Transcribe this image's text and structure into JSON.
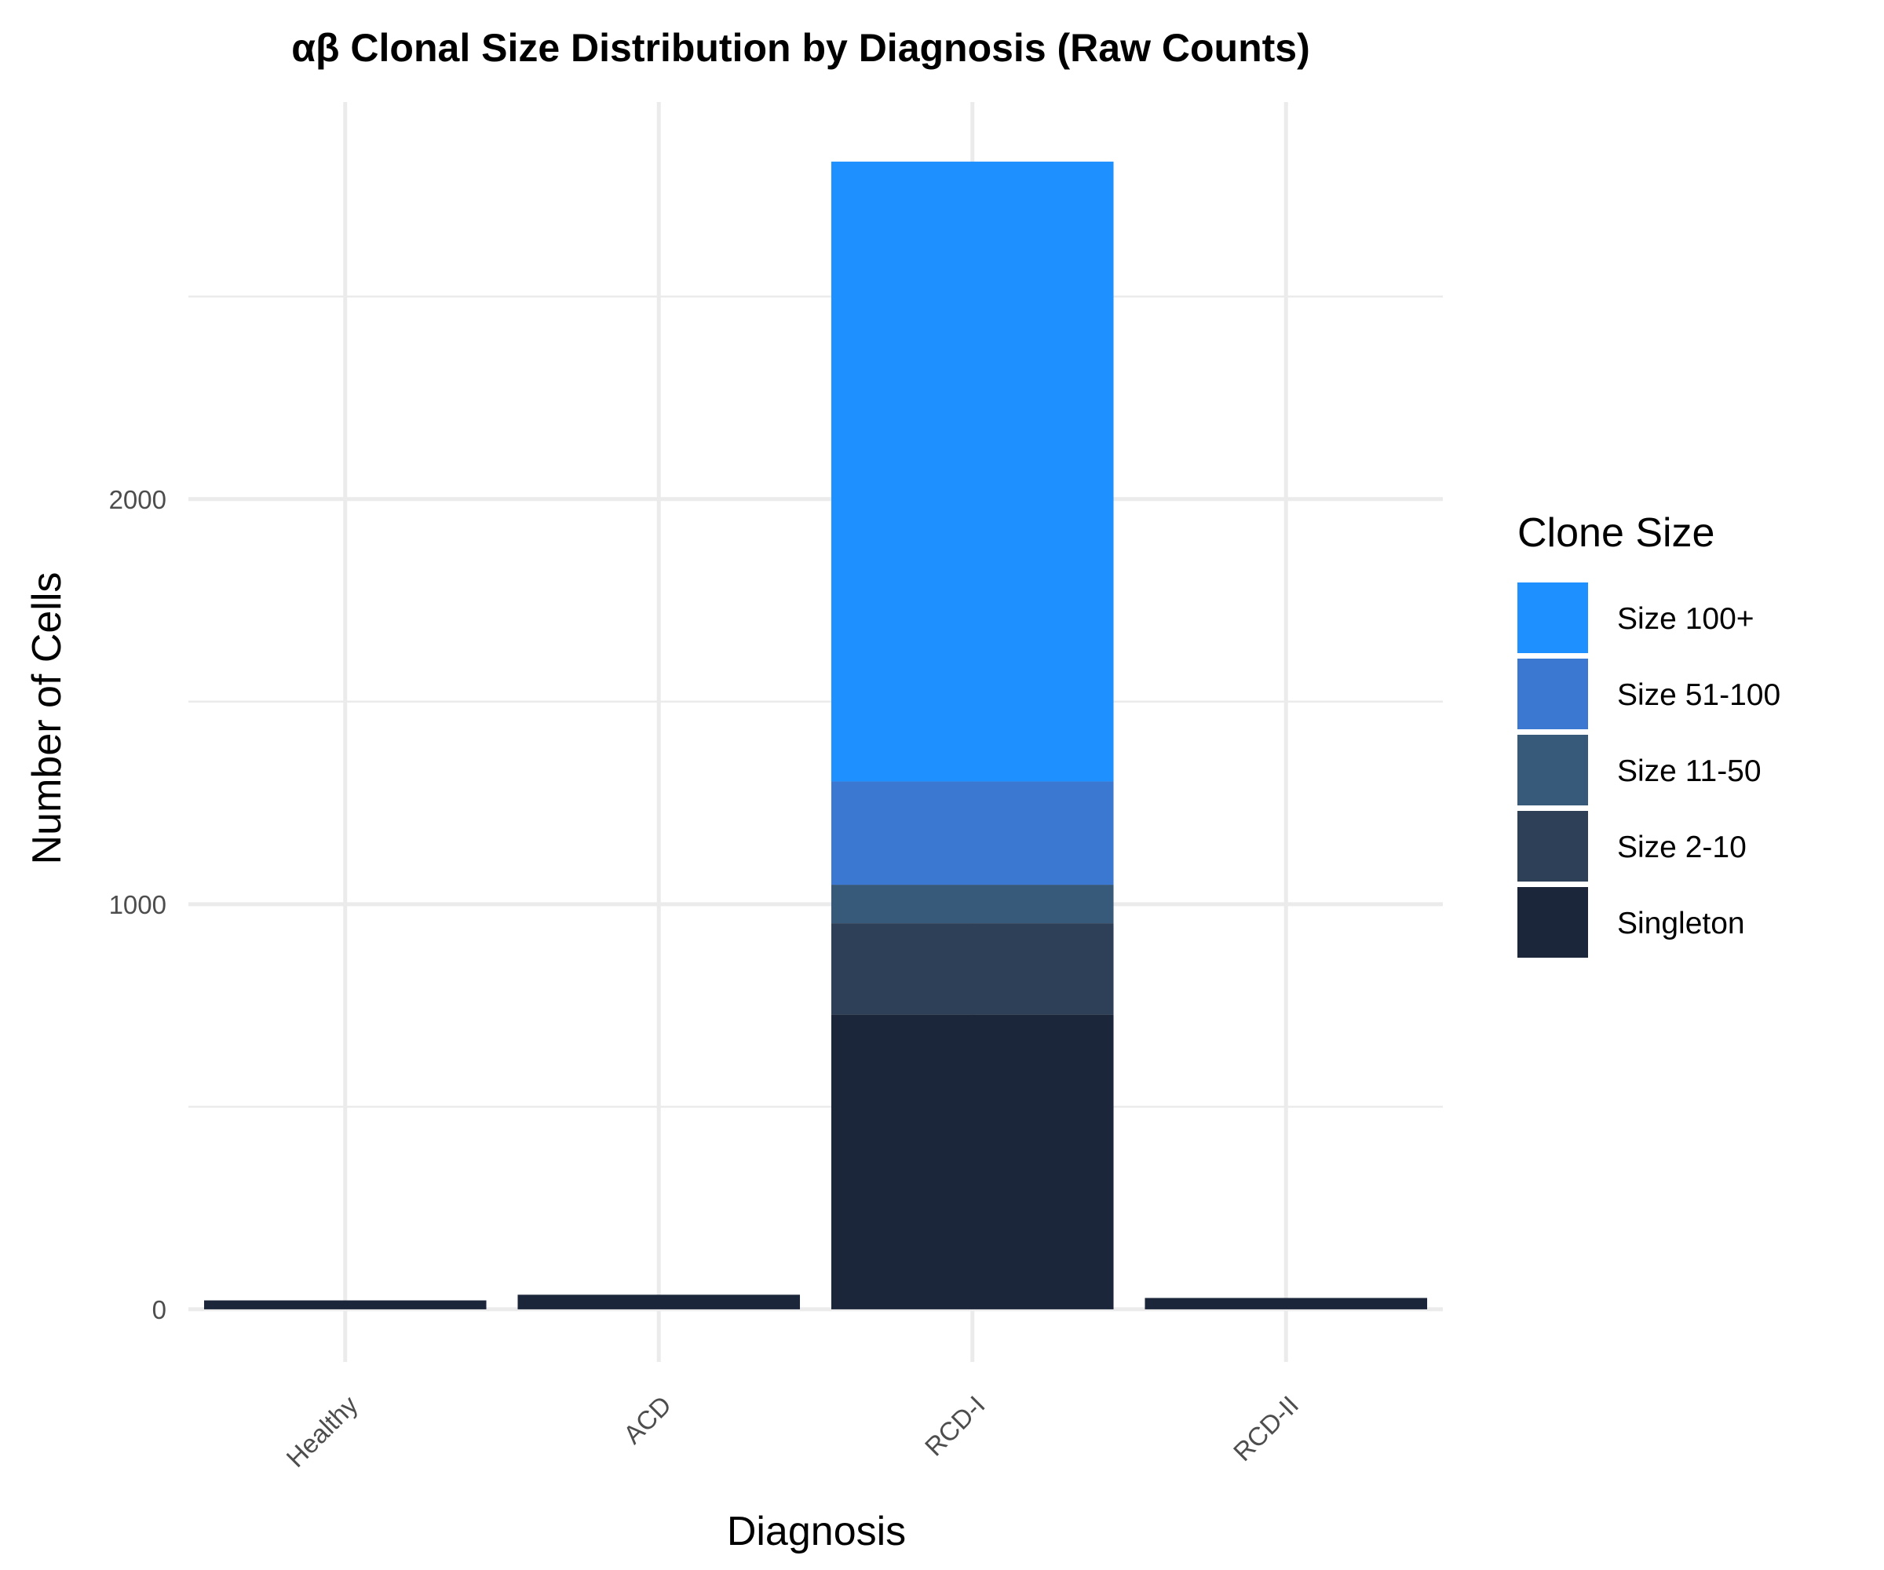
{
  "chart_data": {
    "type": "bar",
    "stacked": true,
    "title": "αβ Clonal Size Distribution by Diagnosis (Raw Counts)",
    "xlabel": "Diagnosis",
    "ylabel": "Number of Cells",
    "categories": [
      "Healthy",
      "ACD",
      "RCD-I",
      "RCD-II"
    ],
    "yticks": [
      0,
      1000,
      2000
    ],
    "ylim": [
      -130,
      2980
    ],
    "grid": true,
    "legend": {
      "title": "Clone Size",
      "placement": "right"
    },
    "series": [
      {
        "name": "Singleton",
        "color": "#1c263a",
        "values": [
          22,
          36,
          728,
          28
        ]
      },
      {
        "name": "Size 2-10",
        "color": "#2e4057",
        "values": [
          0,
          0,
          225,
          0
        ]
      },
      {
        "name": "Size 11-50",
        "color": "#375a7a",
        "values": [
          0,
          0,
          95,
          0
        ]
      },
      {
        "name": "Size 51-100",
        "color": "#3a78d2",
        "values": [
          0,
          0,
          255,
          0
        ]
      },
      {
        "name": "Size 100+",
        "color": "#1e90ff",
        "values": [
          0,
          0,
          1530,
          0
        ]
      }
    ]
  }
}
